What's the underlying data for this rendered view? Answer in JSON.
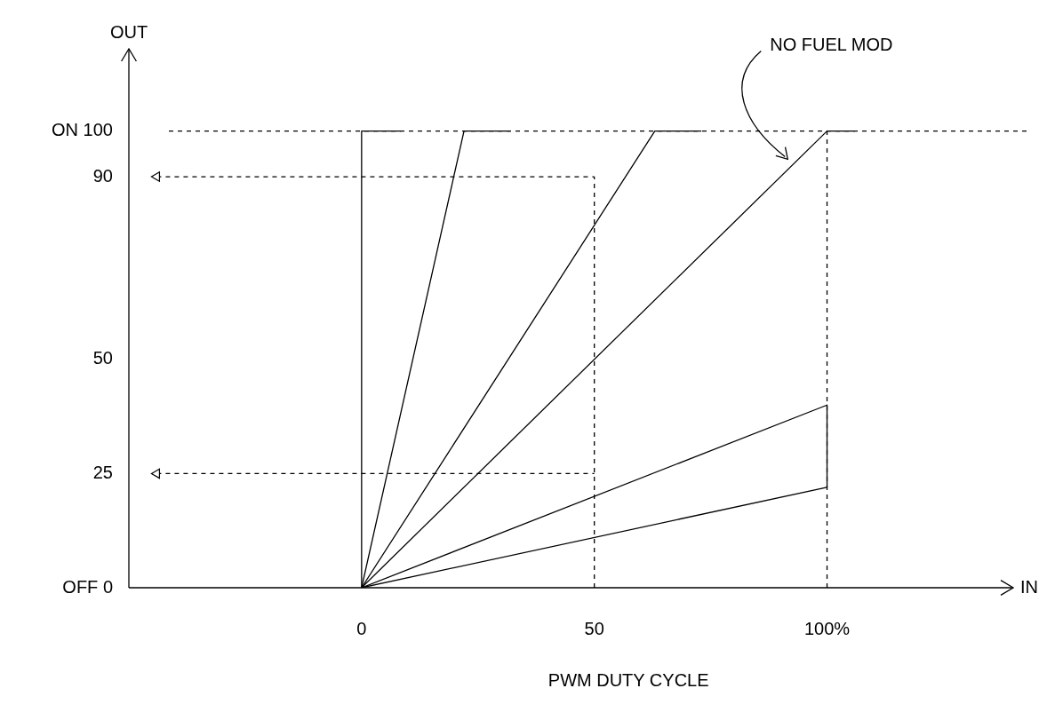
{
  "chart_data": {
    "type": "line",
    "xlabel": "IN",
    "ylabel": "OUT",
    "xlim": [
      -50,
      140
    ],
    "xticks": [
      0,
      50,
      {
        "value": 100,
        "label": "100%"
      }
    ],
    "ylim": [
      0,
      118
    ],
    "yticks": [
      {
        "value": 0,
        "label": "OFF 0"
      },
      25,
      50,
      90,
      {
        "value": 100,
        "label": "ON 100"
      }
    ],
    "grid": false,
    "legend": false,
    "line_style": "solid",
    "series": [
      {
        "color": "#000000",
        "x": [
          0,
          0,
          8.5
        ],
        "values": [
          0,
          100,
          100
        ]
      },
      {
        "color": "#000000",
        "x": [
          0,
          22,
          32
        ],
        "values": [
          0,
          100,
          100
        ]
      },
      {
        "color": "#000000",
        "x": [
          0,
          63,
          73
        ],
        "values": [
          0,
          100,
          100
        ]
      },
      {
        "color": "#000000",
        "x": [
          0,
          100,
          106
        ],
        "values": [
          0,
          100,
          100
        ]
      },
      {
        "color": "#000000",
        "x": [
          0,
          100,
          100
        ],
        "values": [
          0,
          40,
          22
        ]
      },
      {
        "color": "#000000",
        "x": [
          0,
          100
        ],
        "values": [
          0,
          22
        ]
      },
      {
        "color": "#000000",
        "line_style": "dashed",
        "marker": "triangle",
        "x": [
          -44,
          50
        ],
        "values": [
          90,
          90
        ]
      },
      {
        "color": "#000000",
        "line_style": "dashed",
        "marker": "triangle",
        "x": [
          -44,
          50
        ],
        "values": [
          25,
          25
        ]
      },
      {
        "color": "#000000",
        "line_style": "dashed",
        "x": [
          50,
          50
        ],
        "values": [
          0,
          90
        ]
      },
      {
        "color": "#000000",
        "line_style": "dashed",
        "x": [
          100,
          100
        ],
        "values": [
          0,
          100
        ]
      }
    ],
    "ref_lines": [
      {
        "axis": "y",
        "value": 100,
        "line_style": "dashed",
        "color": "#000000"
      }
    ],
    "annotations": [
      "NO FUEL MOD",
      "PWM DUTY CYCLE"
    ]
  }
}
